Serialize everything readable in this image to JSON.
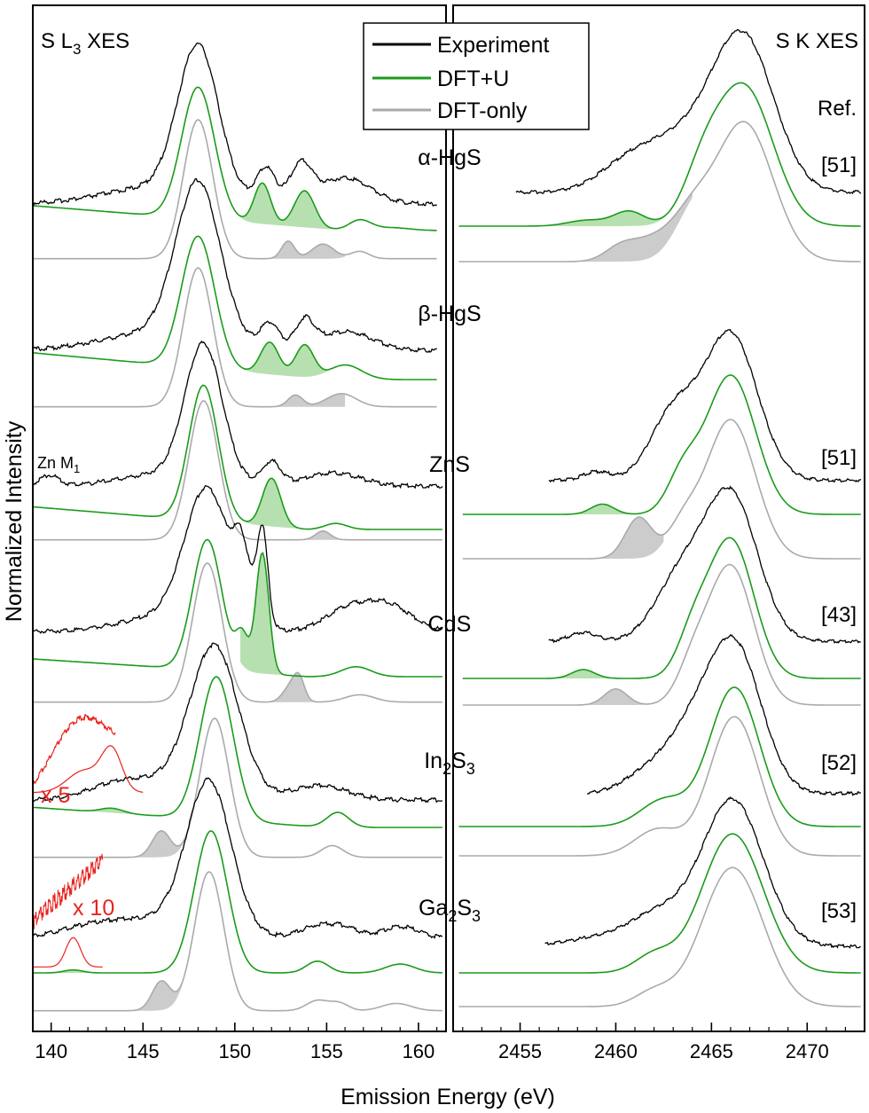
{
  "figure": {
    "ylabel": "Normalized Intensity",
    "xlabel": "Emission Energy (eV)",
    "left_title_parts": [
      "S L",
      "3",
      " XES"
    ],
    "right_title": "S K XES",
    "ref_header": "Ref.",
    "zn_m1_parts": [
      "Zn M",
      "1"
    ],
    "legend": [
      {
        "label": "Experiment",
        "color": "#000000"
      },
      {
        "label": "DFT+U",
        "color": "#1a9b1a"
      },
      {
        "label": "DFT-only",
        "color": "#aaaaaa"
      }
    ],
    "scale_labels": [
      "x 5",
      "x 10"
    ],
    "colors": {
      "experiment": "#000000",
      "dft_u": "#1a9b1a",
      "dft_only": "#aaaaaa",
      "dft_u_fill": "#b7e0b0",
      "dft_only_fill": "#cccccc",
      "magnified": "#e8231e"
    }
  },
  "chart_data": [
    {
      "type": "line",
      "panel": "S L3 XES",
      "xlim": [
        139,
        161.5
      ],
      "xticks": [
        140,
        145,
        150,
        155,
        160
      ],
      "grid": false,
      "series_names": [
        "Experiment",
        "DFT+U",
        "DFT-only"
      ],
      "materials": [
        {
          "name": "α-HgS",
          "main_peak": 148.0,
          "exp_features": [
            151.7,
            153.6,
            156.0
          ],
          "dft_u_peaks": [
            151.5,
            153.8,
            156.8
          ],
          "dft_only_peaks": [
            152.9,
            154.8,
            156.8
          ]
        },
        {
          "name": "β-HgS",
          "main_peak": 148.0,
          "exp_features": [
            151.9,
            153.8,
            156.0
          ],
          "dft_u_peaks": [
            151.9,
            153.8,
            156.0
          ],
          "dft_only_peaks": [
            153.3,
            155.8
          ]
        },
        {
          "name": "ZnS",
          "main_peak": 148.3,
          "exp_features": [
            139.9,
            152.0,
            155.3
          ],
          "dft_u_peaks": [
            152.0,
            155.5
          ],
          "dft_only_peaks": [
            154.8
          ]
        },
        {
          "name": "CdS",
          "main_peak": 148.5,
          "exp_features": [
            150.4,
            151.5,
            156.0,
            158.3
          ],
          "dft_u_peaks": [
            150.4,
            151.5,
            156.6
          ],
          "dft_only_peaks": [
            153.0,
            153.5,
            156.8
          ]
        },
        {
          "name": "In2S3",
          "name_parts": [
            "In",
            "2",
            "S",
            "3"
          ],
          "main_peak": 148.9,
          "exp_features": [
            154.6
          ],
          "dft_u_peaks": [
            143.3,
            155.6
          ],
          "dft_only_peaks": [
            146.0,
            155.3
          ],
          "magnification": 5
        },
        {
          "name": "Ga2S3",
          "name_parts": [
            "Ga",
            "2",
            "S",
            "3"
          ],
          "main_peak": 148.6,
          "exp_features": [
            154.5,
            156.0,
            159.0
          ],
          "dft_u_peaks": [
            141.2,
            154.5,
            159.0
          ],
          "dft_only_peaks": [
            146.0,
            154.5,
            155.7,
            158.8
          ],
          "magnification": 10
        }
      ]
    },
    {
      "type": "line",
      "panel": "S K XES",
      "xlim": [
        2451.5,
        2473
      ],
      "xticks": [
        2455,
        2460,
        2465,
        2470
      ],
      "grid": false,
      "series_names": [
        "Experiment",
        "DFT+U",
        "DFT-only"
      ],
      "materials": [
        {
          "name": "α-HgS",
          "ref": "[51]",
          "main_peak": 2466.7,
          "dft_u_peaks": [
            2460.7,
            2464.5
          ],
          "dft_only_peaks": [
            2460.5,
            2462.0
          ]
        },
        {
          "name": "β-HgS",
          "ref": ""
        },
        {
          "name": "ZnS",
          "ref": "[51]",
          "main_peak": 2466.0,
          "dft_u_peaks": [
            2459.3,
            2463.5
          ],
          "dft_only_peaks": [
            2461.2,
            2463.5
          ]
        },
        {
          "name": "CdS",
          "ref": "[43]",
          "main_peak": 2466.0,
          "dft_u_peaks": [
            2458.3,
            2464.0
          ],
          "dft_only_peaks": [
            2460.0,
            2464.0
          ]
        },
        {
          "name": "In2S3",
          "ref": "[52]",
          "main_peak": 2466.2,
          "dft_u_peaks": [
            2462.2
          ],
          "dft_only_peaks": [
            2462.0
          ]
        },
        {
          "name": "Ga2S3",
          "ref": "[53]",
          "main_peak": 2466.1,
          "dft_u_peaks": [
            2462.0
          ],
          "dft_only_peaks": [
            2462.0
          ]
        }
      ]
    }
  ]
}
